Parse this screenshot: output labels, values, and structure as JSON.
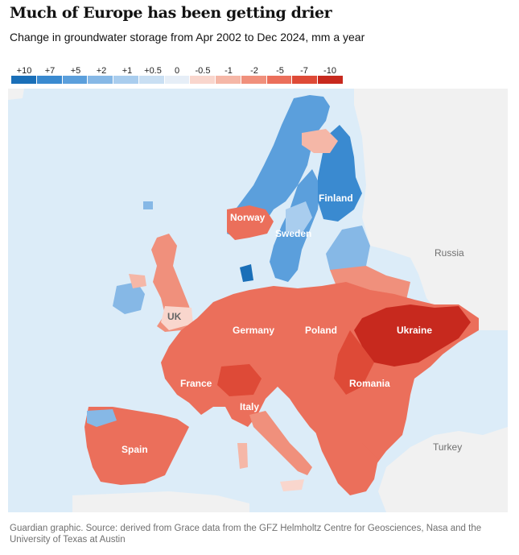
{
  "header": {
    "title": "Much of Europe has been getting drier",
    "subtitle": "Change in groundwater storage from Apr 2002 to Dec 2024, mm a year"
  },
  "legend": {
    "labels": [
      "+10",
      "+7",
      "+5",
      "+2",
      "+1",
      "+0.5",
      "0",
      "-0.5",
      "-1",
      "-2",
      "-5",
      "-7",
      "-10"
    ],
    "colors": [
      "#1a6fb8",
      "#3a8ad0",
      "#5b9fdc",
      "#86b8e6",
      "#a9cdee",
      "#c9dff3",
      "#e6eef7",
      "#f9d6cd",
      "#f5b7a7",
      "#f0907c",
      "#eb6f5b",
      "#de4a37",
      "#c7291e"
    ]
  },
  "map": {
    "sea_color": "#dcecf8",
    "land_neutral_color": "#f1f1f1",
    "labels": {
      "norway": "Norway",
      "sweden": "Sweden",
      "finland": "Finland",
      "russia": "Russia",
      "uk": "UK",
      "germany": "Germany",
      "poland": "Poland",
      "ukraine": "Ukraine",
      "france": "France",
      "italy": "Italy",
      "romania": "Romania",
      "spain": "Spain",
      "turkey": "Turkey"
    }
  },
  "source": "Guardian graphic. Source: derived from Grace data from the GFZ Helmholtz Centre for Geosciences, Nasa and the University of Texas at Austin"
}
